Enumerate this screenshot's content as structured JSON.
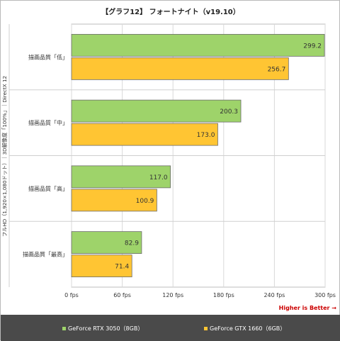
{
  "chart_data": {
    "type": "bar",
    "orientation": "horizontal",
    "title": "【グラフ12】 フォートナイト（v19.10）",
    "ylabel": "フルHD（1,920×1,080ドット）｜3D解像度「100%」｜DirectX 12",
    "categories": [
      "描画品質「低」",
      "描画品質「中」",
      "描画品質「高」",
      "描画品質「最高」"
    ],
    "series": [
      {
        "name": "GeForce RTX 3050（8GB）",
        "color": "#9ed36a",
        "values": [
          299.2,
          200.3,
          117.0,
          82.9
        ]
      },
      {
        "name": "GeForce GTX 1660（6GB）",
        "color": "#ffc533",
        "values": [
          256.7,
          173.0,
          100.9,
          71.4
        ]
      }
    ],
    "xlim": [
      0,
      300
    ],
    "xticks": [
      0,
      60,
      120,
      180,
      240,
      300
    ],
    "tick_labels": [
      "0 fps",
      "60 fps",
      "120 fps",
      "180 fps",
      "240 fps",
      "300 fps"
    ],
    "grid": true,
    "legend_position": "bottom",
    "annotation": "Higher is Better →",
    "annotation_color": "#cc0000"
  }
}
